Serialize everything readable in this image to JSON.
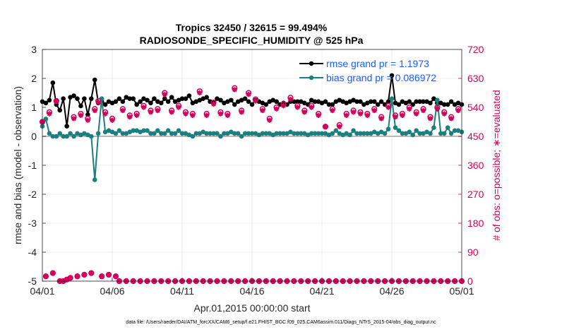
{
  "chart_data": {
    "type": "line",
    "title_line1": "Tropics 32450 / 32615 = 99.494%",
    "title_line2": "RADIOSONDE_SPECIFIC_HUMIDITY @ 525 hPa",
    "xlabel": "Apr.01,2015 00:00:00 start",
    "ylabel": "rmse and bias (model - observation)",
    "ylabel_right": "# of obs: o=possible; ∗=evaluated",
    "footnote": "data file: /Users/raeder/DAI/ATM_forcXX/CAM6_setup/f.e21.FHIST_BGC.f09_025.CAM6assim.011/Diags_NTrS_2015-04/obs_diag_output.nc",
    "xlim": [
      0,
      30
    ],
    "ylim": [
      -5,
      3
    ],
    "ylim_right": [
      0,
      720
    ],
    "x_ticks": [
      {
        "x": 0,
        "label": "04/01"
      },
      {
        "x": 5,
        "label": "04/06"
      },
      {
        "x": 10,
        "label": "04/11"
      },
      {
        "x": 15,
        "label": "04/16"
      },
      {
        "x": 20,
        "label": "04/21"
      },
      {
        "x": 25,
        "label": "04/26"
      },
      {
        "x": 30,
        "label": "05/01"
      }
    ],
    "y_ticks": [
      "3",
      "2",
      "1",
      "0",
      "-1",
      "-2",
      "-3",
      "-4",
      "-5"
    ],
    "y_ticks_right": [
      "720",
      "630",
      "540",
      "450",
      "360",
      "270",
      "180",
      "90",
      "0"
    ],
    "legend": [
      {
        "label": "rmse grand pr = 1.1973",
        "color": "#000000"
      },
      {
        "label": "bias grand pr = 0.086972",
        "color": "#1a7f7f"
      }
    ],
    "colors": {
      "rmse": "#000000",
      "bias": "#1a7f7f",
      "obs": "#d1005a",
      "grid": "#e6e6e6",
      "zero": "#b8b8b8"
    },
    "x": [
      0,
      0.25,
      0.5,
      0.75,
      1,
      1.25,
      1.5,
      1.75,
      2,
      2.25,
      2.5,
      2.75,
      3,
      3.25,
      3.5,
      3.75,
      4,
      4.25,
      4.5,
      4.75,
      5,
      5.25,
      5.5,
      5.75,
      6,
      6.25,
      6.5,
      6.75,
      7,
      7.25,
      7.5,
      7.75,
      8,
      8.25,
      8.5,
      8.75,
      9,
      9.25,
      9.5,
      9.75,
      10,
      10.25,
      10.5,
      10.75,
      11,
      11.25,
      11.5,
      11.75,
      12,
      12.25,
      12.5,
      12.75,
      13,
      13.25,
      13.5,
      13.75,
      14,
      14.25,
      14.5,
      14.75,
      15,
      15.25,
      15.5,
      15.75,
      16,
      16.25,
      16.5,
      16.75,
      17,
      17.25,
      17.5,
      17.75,
      18,
      18.25,
      18.5,
      18.75,
      19,
      19.25,
      19.5,
      19.75,
      20,
      20.25,
      20.5,
      20.75,
      21,
      21.25,
      21.5,
      21.75,
      22,
      22.25,
      22.5,
      22.75,
      23,
      23.25,
      23.5,
      23.75,
      24,
      24.25,
      24.5,
      24.75,
      25,
      25.25,
      25.5,
      25.75,
      26,
      26.25,
      26.5,
      26.75,
      27,
      27.25,
      27.5,
      27.75,
      28,
      28.25,
      28.5,
      28.75,
      29,
      29.25,
      29.5,
      29.75,
      30
    ],
    "rmse": [
      1.2,
      1.15,
      1.25,
      1.85,
      1.1,
      0.9,
      1.3,
      0.35,
      1.35,
      1.4,
      1.3,
      1.05,
      1.3,
      0.75,
      1.3,
      1.95,
      1.15,
      1.2,
      1.1,
      1.2,
      1.15,
      1.2,
      1.3,
      1.2,
      1.35,
      1.3,
      1.3,
      1.1,
      1.2,
      1.3,
      1.25,
      1.15,
      1.3,
      1.2,
      1.15,
      1.3,
      1.2,
      1.35,
      1.2,
      1.25,
      1.3,
      1.3,
      1.4,
      1.15,
      1.2,
      1.25,
      1.3,
      1.35,
      1.2,
      1.15,
      1.3,
      1.25,
      1.15,
      1.2,
      1.25,
      1.1,
      1.2,
      1.25,
      1.3,
      1.2,
      1.1,
      1.25,
      1.2,
      1.15,
      1.1,
      1.2,
      1.25,
      1.2,
      1.1,
      1.15,
      1.1,
      1.2,
      1.2,
      1.2,
      1.2,
      1.15,
      1.1,
      1.25,
      1.2,
      1.2,
      1.15,
      1.2,
      1.1,
      1.1,
      1.2,
      1.25,
      1.2,
      1.15,
      1.2,
      1.25,
      1.2,
      1.2,
      1.1,
      1.15,
      1.2,
      1.2,
      1.1,
      1.2,
      1.1,
      1.2,
      2.1,
      1.15,
      1.1,
      1.2,
      1.15,
      1.2,
      1.1,
      1.2,
      1.2,
      1.2,
      1.2,
      1.15,
      1.3,
      1.15,
      1.15,
      1.1,
      1.1,
      1.2,
      1.1,
      1.15,
      1.1,
      1.15,
      1.1
    ],
    "bias": [
      0.35,
      0.6,
      0.1,
      0.0,
      0.0,
      0.1,
      0.0,
      0.0,
      0.1,
      0.0,
      0.1,
      0.05,
      0.1,
      0.05,
      0.0,
      -1.5,
      0.1,
      1.3,
      0.15,
      0.2,
      0.15,
      0.1,
      0.2,
      0.1,
      0.1,
      0.15,
      0.2,
      0.2,
      0.15,
      0.2,
      0.2,
      0.1,
      0.1,
      0.2,
      0.1,
      0.1,
      0.2,
      0.1,
      0.1,
      0.2,
      0.1,
      0.1,
      0.05,
      0.0,
      0.1,
      0.1,
      0.15,
      0.1,
      0.1,
      0.1,
      0.1,
      0.0,
      0.1,
      0.1,
      0.15,
      0.1,
      0.1,
      0.0,
      0.1,
      0.1,
      0.1,
      0.1,
      0.05,
      0.1,
      0.1,
      0.1,
      0.05,
      0.1,
      0.1,
      0.1,
      0.1,
      0.15,
      0.1,
      0.1,
      0.1,
      0.1,
      0.05,
      0.1,
      0.1,
      0.1,
      0.1,
      0.1,
      0.05,
      0.1,
      0.2,
      0.1,
      0.05,
      0.1,
      0.05,
      0.2,
      0.1,
      0.1,
      0.1,
      0.1,
      0.1,
      0.15,
      0.1,
      0.15,
      0.1,
      0.25,
      1.3,
      0.3,
      0.2,
      0.1,
      0.1,
      0.15,
      0.05,
      0.2,
      0.1,
      0.1,
      0.15,
      0.1,
      0.3,
      1.25,
      0.1,
      0.1,
      0.3,
      0.1,
      0.2,
      0.2,
      0.15,
      0.1,
      0.1
    ],
    "obs_possible": [
      495,
      15,
      525,
      25,
      560,
      0,
      0,
      5,
      10,
      510,
      15,
      520,
      20,
      505,
      25,
      535,
      560,
      15,
      525,
      20,
      505,
      15,
      0,
      535,
      0,
      515,
      0,
      520,
      0,
      545,
      0,
      530,
      0,
      535,
      0,
      585,
      0,
      530,
      0,
      545,
      0,
      525,
      0,
      520,
      0,
      590,
      0,
      520,
      0,
      555,
      0,
      525,
      0,
      520,
      0,
      600,
      0,
      530,
      0,
      585,
      0,
      565,
      0,
      535,
      0,
      505,
      0,
      540,
      0,
      550,
      0,
      570,
      0,
      545,
      0,
      530,
      0,
      545,
      0,
      520,
      0,
      480,
      0,
      535,
      0,
      485,
      0,
      520,
      0,
      530,
      0,
      525,
      0,
      520,
      0,
      535,
      0,
      510,
      0,
      545,
      0,
      515,
      0,
      520,
      0,
      540,
      0,
      525,
      0,
      535,
      0,
      510,
      0,
      540,
      0,
      525,
      0,
      510,
      0,
      535,
      0,
      505,
      0,
      550,
      0
    ],
    "obs_evaluated": [
      495,
      15,
      520,
      25,
      560,
      0,
      0,
      5,
      10,
      505,
      15,
      515,
      20,
      500,
      25,
      530,
      555,
      15,
      520,
      20,
      500,
      15,
      0,
      530,
      0,
      510,
      0,
      515,
      0,
      540,
      0,
      525,
      0,
      530,
      0,
      580,
      0,
      525,
      0,
      540,
      0,
      520,
      0,
      515,
      0,
      585,
      0,
      515,
      0,
      550,
      0,
      520,
      0,
      515,
      0,
      595,
      0,
      525,
      0,
      580,
      0,
      560,
      0,
      530,
      0,
      500,
      0,
      535,
      0,
      545,
      0,
      565,
      0,
      540,
      0,
      525,
      0,
      540,
      0,
      515,
      0,
      480,
      0,
      530,
      0,
      480,
      0,
      515,
      0,
      525,
      0,
      520,
      0,
      515,
      0,
      530,
      0,
      505,
      0,
      540,
      0,
      510,
      0,
      515,
      0,
      535,
      0,
      520,
      0,
      530,
      0,
      505,
      0,
      535,
      0,
      520,
      0,
      505,
      0,
      530,
      0,
      500,
      0,
      545,
      0
    ]
  }
}
